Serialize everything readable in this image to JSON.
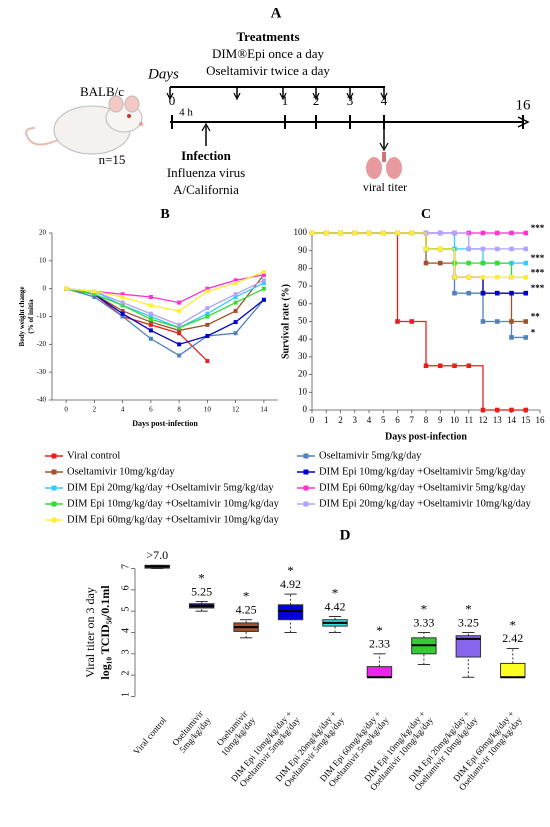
{
  "panel_a": {
    "label": "A",
    "treatments_title": "Treatments",
    "treatment_lines": [
      "DIM®Epi once a day",
      "Oseltamivir twice a day"
    ],
    "days_label": "Days",
    "mouse_strain": "BALB/c",
    "n": "n=15",
    "timeline_days": [
      0,
      1,
      2,
      3,
      4,
      16
    ],
    "hours_label": "4 h",
    "infection_title": "Infection",
    "infection_lines": [
      "Influenza virus",
      "A/California"
    ],
    "endpoint": "viral titer"
  },
  "chart_data": [
    {
      "type": "line",
      "panel_label": "B",
      "x_label": "Days post-infection",
      "y_label": [
        "Body weight change",
        "(% of initia"
      ],
      "x": [
        0,
        2,
        4,
        6,
        8,
        10,
        12,
        14
      ],
      "xlim": [
        -1,
        15
      ],
      "xticks": [
        0,
        2,
        4,
        6,
        8,
        10,
        12,
        14
      ],
      "ylim": [
        -40,
        20
      ],
      "yticks": [
        -40,
        -30,
        -20,
        -10,
        0,
        10,
        20
      ],
      "series": [
        {
          "name": "Viral control",
          "color": "#e8201c",
          "values": [
            0,
            -2,
            -10,
            -13,
            -16,
            -26,
            null,
            null
          ]
        },
        {
          "name": "Oseltamivir 5mg/kg/day",
          "color": "#4f81bd",
          "values": [
            0,
            -3,
            -10,
            -18,
            -24,
            -17,
            -16,
            -4
          ]
        },
        {
          "name": "Oseltamivir 10mg/kg/day",
          "color": "#a0522d",
          "values": [
            0,
            -2,
            -8,
            -12,
            -15,
            -13,
            -8,
            5
          ]
        },
        {
          "name": "DIM Epi 10mg/kg/day +Oseltamivir 5mg/kg/day",
          "color": "#0000cc",
          "values": [
            0,
            -2,
            -9,
            -15,
            -20,
            -17,
            -12,
            -4
          ]
        },
        {
          "name": "DIM Epi 20mg/kg/day +Oseltamivir 5mg/kg/day",
          "color": "#33ccff",
          "values": [
            0,
            -1,
            -6,
            -10,
            -14,
            -9,
            -3,
            2
          ]
        },
        {
          "name": "DIM Epi 60mg/kg/day +Oseltamivir 5mg/kg/day",
          "color": "#ff33cc",
          "values": [
            0,
            -1,
            -2,
            -3,
            -5,
            0,
            3,
            5
          ]
        },
        {
          "name": "DIM Epi 10mg/kg/day +Oseltamivir 10mg/kg/day",
          "color": "#33dd33",
          "values": [
            0,
            -2,
            -6,
            -11,
            -14,
            -10,
            -5,
            0
          ]
        },
        {
          "name": "DIM Epi 20mg/kg/day +Oseltamivir 10mg/kg/day",
          "color": "#b3a2ff",
          "values": [
            0,
            -1,
            -5,
            -9,
            -13,
            -7,
            -2,
            3
          ]
        },
        {
          "name": "DIM Epi 60mg/kg/day +Oseltamivir 10mg/kg/day",
          "color": "#ffee33",
          "values": [
            0,
            -1,
            -3,
            -6,
            -8,
            -1,
            2,
            6
          ]
        }
      ]
    },
    {
      "type": "step",
      "panel_label": "C",
      "x_label": "Days post-infection",
      "y_label": "Survival rate (%)",
      "x": [
        0,
        1,
        2,
        3,
        4,
        5,
        6,
        7,
        8,
        9,
        10,
        11,
        12,
        13,
        14,
        15
      ],
      "xlim": [
        0,
        16
      ],
      "xticks": [
        0,
        1,
        2,
        3,
        4,
        5,
        6,
        7,
        8,
        9,
        10,
        11,
        12,
        13,
        14,
        15,
        16
      ],
      "ylim": [
        0,
        100
      ],
      "yticks": [
        0,
        10,
        20,
        30,
        40,
        50,
        60,
        70,
        80,
        90,
        100
      ],
      "series": [
        {
          "color": "#e8201c",
          "values": [
            100,
            100,
            100,
            100,
            100,
            100,
            50,
            50,
            25,
            25,
            25,
            25,
            0,
            0,
            0,
            0
          ],
          "significance": null
        },
        {
          "color": "#4f81bd",
          "values": [
            100,
            100,
            100,
            100,
            100,
            100,
            100,
            100,
            91,
            91,
            66,
            66,
            50,
            50,
            41,
            41
          ],
          "significance": "*"
        },
        {
          "color": "#a0522d",
          "values": [
            100,
            100,
            100,
            100,
            100,
            100,
            100,
            100,
            83,
            83,
            75,
            75,
            66,
            66,
            50,
            50
          ],
          "significance": "**"
        },
        {
          "color": "#0000cc",
          "values": [
            100,
            100,
            100,
            100,
            100,
            100,
            100,
            100,
            91,
            91,
            75,
            75,
            66,
            66,
            66,
            66
          ],
          "significance": "***"
        },
        {
          "color": "#33ccff",
          "values": [
            100,
            100,
            100,
            100,
            100,
            100,
            100,
            100,
            100,
            100,
            91,
            91,
            83,
            83,
            83,
            83
          ],
          "significance": "***"
        },
        {
          "color": "#ff33cc",
          "values": [
            100,
            100,
            100,
            100,
            100,
            100,
            100,
            100,
            100,
            100,
            100,
            100,
            100,
            100,
            100,
            100
          ],
          "significance": "***"
        },
        {
          "color": "#33dd33",
          "values": [
            100,
            100,
            100,
            100,
            100,
            100,
            100,
            100,
            91,
            91,
            83,
            83,
            83,
            83,
            75,
            75
          ],
          "significance": "***"
        },
        {
          "color": "#b3a2ff",
          "values": [
            100,
            100,
            100,
            100,
            100,
            100,
            100,
            100,
            100,
            100,
            100,
            91,
            91,
            91,
            91,
            91
          ],
          "significance": null
        },
        {
          "color": "#ffee33",
          "values": [
            100,
            100,
            100,
            100,
            100,
            100,
            100,
            100,
            91,
            91,
            75,
            75,
            75,
            75,
            75,
            75
          ],
          "significance": null
        }
      ]
    },
    {
      "type": "box",
      "panel_label": "D",
      "y_label": [
        "Viral titer on 3 day",
        "log₁₀ TCID₅₀/0.1ml"
      ],
      "categories": [
        [
          "Viral control"
        ],
        [
          "Oseltamivir",
          "5mg/kg/day"
        ],
        [
          "Oseltamivir",
          "10mg/kg/day"
        ],
        [
          "DIM Epi 10mg/kg/day +",
          "Oseltamivir 5mg/kg/day"
        ],
        [
          "DIM Epi 20mg/kg/day +",
          "Oseltamivir 5mg/kg/day"
        ],
        [
          "DIM Epi 60mg/kg/day +",
          "Oseltamivir 5mg/kg/day"
        ],
        [
          "DIM Epi 10mg/kg/day +",
          "Oseltamivir 10mg/kg/day"
        ],
        [
          "DIM Epi 20mg/kg/day +",
          "Oseltamivir 10mg/kg/day"
        ],
        [
          "DIM Epi 60mg/kg/day +",
          "Oseltamivir 10mg/kg/day"
        ]
      ],
      "colors": [
        "#333333",
        "#1a1a6e",
        "#a0522d",
        "#0000dd",
        "#33dddd",
        "#ee22ee",
        "#33cc33",
        "#8866ee",
        "#ffff22"
      ],
      "boxes": [
        {
          "low": 7.0,
          "q1": 7.02,
          "median": 7.1,
          "q3": 7.15,
          "high": 7.15
        },
        {
          "low": 5.0,
          "q1": 5.15,
          "median": 5.25,
          "q3": 5.35,
          "high": 5.45
        },
        {
          "low": 3.75,
          "q1": 4.05,
          "median": 4.25,
          "q3": 4.45,
          "high": 4.6
        },
        {
          "low": 4.0,
          "q1": 4.6,
          "median": 5.0,
          "q3": 5.3,
          "high": 5.8
        },
        {
          "low": 4.0,
          "q1": 4.3,
          "median": 4.45,
          "q3": 4.6,
          "high": 4.75
        },
        {
          "low": 1.9,
          "q1": 1.9,
          "median": 1.9,
          "q3": 2.4,
          "high": 3.0
        },
        {
          "low": 2.5,
          "q1": 3.0,
          "median": 3.4,
          "q3": 3.75,
          "high": 4.0
        },
        {
          "low": 1.9,
          "q1": 2.85,
          "median": 3.7,
          "q3": 3.85,
          "high": 4.0
        },
        {
          "low": 1.9,
          "q1": 1.9,
          "median": 1.9,
          "q3": 2.55,
          "high": 3.25
        }
      ],
      "values": [
        7.0,
        5.25,
        4.25,
        4.92,
        4.42,
        2.33,
        3.33,
        3.25,
        2.42
      ],
      "value_labels": [
        ">7.0",
        "5.25",
        "4.25",
        "4.92",
        "4.42",
        "2.33",
        "3.33",
        "3.25",
        "2.42"
      ],
      "significance": [
        null,
        "*",
        "*",
        "*",
        "*",
        "*",
        "*",
        "*",
        "*"
      ],
      "ylim": [
        0.6,
        7.4
      ],
      "yticks": [
        1,
        2,
        3,
        4,
        5,
        6,
        7
      ]
    }
  ]
}
